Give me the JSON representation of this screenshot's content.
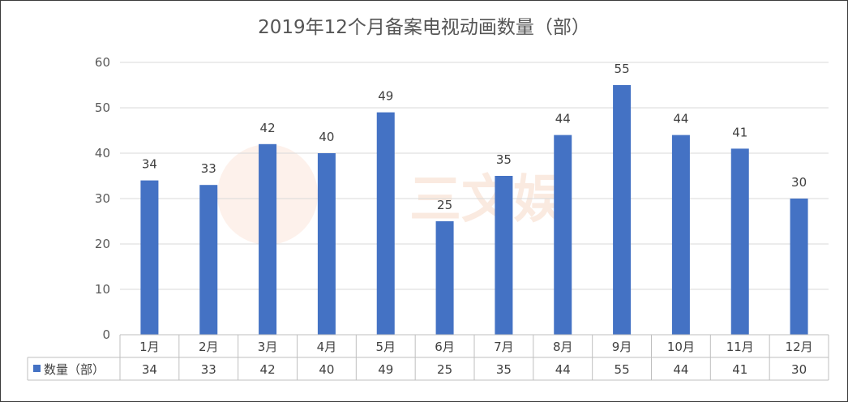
{
  "chart_data": {
    "type": "bar",
    "title": "2019年12个月备案电视动画数量（部）",
    "categories": [
      "1月",
      "2月",
      "3月",
      "4月",
      "5月",
      "6月",
      "7月",
      "8月",
      "9月",
      "10月",
      "11月",
      "12月"
    ],
    "series": [
      {
        "name": "数量（部）",
        "values": [
          34,
          33,
          42,
          40,
          49,
          25,
          35,
          44,
          55,
          44,
          41,
          30
        ]
      }
    ],
    "y_ticks": [
      "0",
      "10",
      "20",
      "30",
      "40",
      "50",
      "60"
    ],
    "ylim": [
      0,
      60
    ],
    "grid": true,
    "legend": "data-table-left",
    "data_table": true,
    "bar_color": "#4472c4",
    "grid_color": "#d9d9d9"
  },
  "watermark": {
    "text": "三文娱"
  }
}
